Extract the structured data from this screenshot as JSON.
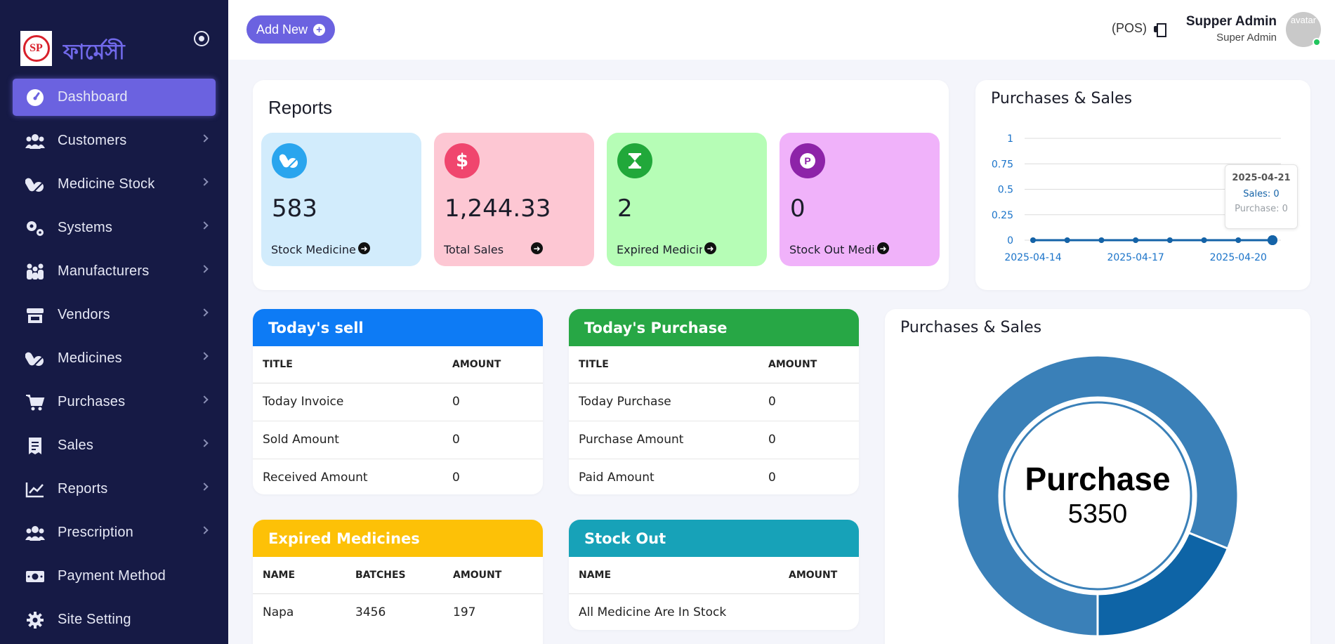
{
  "brand": {
    "logo_text": "SP",
    "name": "ফার্মেসী"
  },
  "sidebar": {
    "items": [
      {
        "label": "Dashboard",
        "icon": "dashboard-gauge-icon",
        "active": true,
        "has_submenu": false
      },
      {
        "label": "Customers",
        "icon": "users-icon",
        "has_submenu": true
      },
      {
        "label": "Medicine Stock",
        "icon": "pills-icon",
        "has_submenu": true
      },
      {
        "label": "Systems",
        "icon": "gears-icon",
        "has_submenu": true
      },
      {
        "label": "Manufacturers",
        "icon": "people-group-icon",
        "has_submenu": true
      },
      {
        "label": "Vendors",
        "icon": "store-icon",
        "has_submenu": true
      },
      {
        "label": "Medicines",
        "icon": "pills-icon",
        "has_submenu": true
      },
      {
        "label": "Purchases",
        "icon": "cart-icon",
        "has_submenu": true
      },
      {
        "label": "Sales",
        "icon": "receipt-icon",
        "has_submenu": true
      },
      {
        "label": "Reports",
        "icon": "chart-line-icon",
        "has_submenu": true
      },
      {
        "label": "Prescription",
        "icon": "users-icon",
        "has_submenu": true
      },
      {
        "label": "Payment Method",
        "icon": "money-icon",
        "has_submenu": false
      },
      {
        "label": "Site Setting",
        "icon": "gear-icon",
        "has_submenu": false
      }
    ]
  },
  "topbar": {
    "add_new_label": "Add New",
    "pos_label": "(POS)",
    "user_name": "Supper Admin",
    "user_role": "Super Admin",
    "avatar_alt": "avatar"
  },
  "reports": {
    "title": "Reports",
    "tiles": [
      {
        "value": "583",
        "label": "Stock Medicine",
        "bg": "#d2ecfc",
        "icon_bg": "#2aa5ee",
        "icon": "pills-icon"
      },
      {
        "value": "1,244.33",
        "label": "Total Sales",
        "bg": "#fdc7d3",
        "icon_bg": "#f0466e",
        "icon": "dollar-icon"
      },
      {
        "value": "2",
        "label": "Expired Medicine",
        "bg": "#b6fdb6",
        "icon_bg": "#21a83a",
        "icon": "hourglass-icon"
      },
      {
        "value": "0",
        "label": "Stock Out Medicine",
        "bg": "#f0b2fa",
        "icon_bg": "#8d23a8",
        "icon": "parking-icon"
      }
    ]
  },
  "line_chart": {
    "title": "Purchases & Sales",
    "tooltip": {
      "date": "2025-04-21",
      "sales": "Sales: 0",
      "purchase": "Purchase: 0"
    }
  },
  "today_sell": {
    "title": "Today's sell",
    "header_color": "#0d7bf5",
    "columns": [
      "TITLE",
      "AMOUNT"
    ],
    "rows": [
      [
        "Today Invoice",
        "0"
      ],
      [
        "Sold Amount",
        "0"
      ],
      [
        "Received Amount",
        "0"
      ]
    ]
  },
  "today_purchase": {
    "title": "Today's Purchase",
    "header_color": "#27a745",
    "columns": [
      "TITLE",
      "AMOUNT"
    ],
    "rows": [
      [
        "Today Purchase",
        "0"
      ],
      [
        "Purchase Amount",
        "0"
      ],
      [
        "Paid Amount",
        "0"
      ]
    ]
  },
  "expired": {
    "title": "Expired Medicines",
    "header_color": "#fdc107",
    "columns": [
      "NAME",
      "BATCHES",
      "AMOUNT"
    ],
    "rows": [
      [
        "Napa",
        "3456",
        "197"
      ]
    ]
  },
  "stock_out": {
    "title": "Stock Out",
    "header_color": "#17a2b8",
    "columns": [
      "NAME",
      "AMOUNT"
    ],
    "rows": [
      [
        "All Medicine Are In Stock",
        ""
      ]
    ]
  },
  "donut": {
    "title": "Purchases & Sales",
    "center_label": "Purchase",
    "center_value": "5350"
  },
  "chart_data": [
    {
      "type": "line",
      "title": "Purchases & Sales",
      "x": [
        "2025-04-14",
        "2025-04-15",
        "2025-04-16",
        "2025-04-17",
        "2025-04-18",
        "2025-04-19",
        "2025-04-20",
        "2025-04-21"
      ],
      "x_tick_labels": [
        "2025-04-14",
        "2025-04-17",
        "2025-04-20"
      ],
      "series": [
        {
          "name": "Sales",
          "values": [
            0,
            0,
            0,
            0,
            0,
            0,
            0,
            0
          ],
          "color": "#1463a8"
        },
        {
          "name": "Purchase",
          "values": [
            0,
            0,
            0,
            0,
            0,
            0,
            0,
            0
          ],
          "color": "#9aa0a6"
        }
      ],
      "y_ticks": [
        "0",
        "0.25",
        "0.5",
        "0.75",
        "1"
      ],
      "ylim": [
        0,
        1
      ],
      "grid": true
    },
    {
      "type": "pie",
      "title": "Purchases & Sales",
      "labels": [
        "Purchase",
        "Sales"
      ],
      "values": [
        5350,
        1244.33
      ],
      "colors": [
        "#3a80b8",
        "#0e64a6"
      ]
    }
  ]
}
